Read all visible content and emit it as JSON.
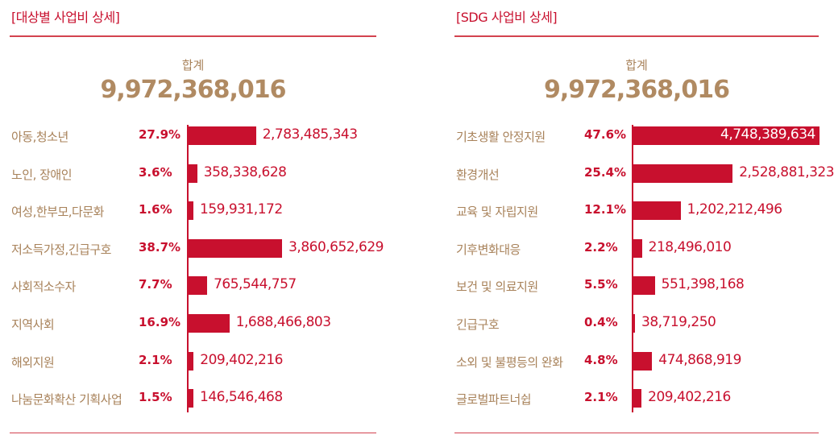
{
  "chart_data": [
    {
      "type": "bar",
      "title": "[대상별 사업비 상세]",
      "total_label": "합계",
      "total": "9,972,368,016",
      "categories": [
        "아동,청소년",
        "노인, 장애인",
        "여성,한부모,다문화",
        "저소득가정,긴급구호",
        "사회적소수자",
        "지역사회",
        "해외지원",
        "나눔문화확산 기획사업"
      ],
      "percent_labels": [
        "27.9%",
        "3.6%",
        "1.6%",
        "38.7%",
        "7.7%",
        "16.9%",
        "2.1%",
        "1.5%"
      ],
      "percents": [
        27.9,
        3.6,
        1.6,
        38.7,
        7.7,
        16.9,
        2.1,
        1.5
      ],
      "value_labels": [
        "2,783,485,343",
        "358,338,628",
        "159,931,172",
        "3,860,652,629",
        "765,544,757",
        "1,688,466,803",
        "209,402,216",
        "146,546,468"
      ]
    },
    {
      "type": "bar",
      "title": "[SDG 사업비 상세]",
      "total_label": "합계",
      "total": "9,972,368,016",
      "categories": [
        "기초생활 안정지원",
        "환경개선",
        "교육 및 자립지원",
        "기후변화대응",
        "보건 및 의료지원",
        "긴급구호",
        "소외 및 불평등의 완화",
        "글로벌파트너쉽"
      ],
      "percent_labels": [
        "47.6%",
        "25.4%",
        "12.1%",
        "2.2%",
        "5.5%",
        "0.4%",
        "4.8%",
        "2.1%"
      ],
      "percents": [
        47.6,
        25.4,
        12.1,
        2.2,
        5.5,
        0.4,
        4.8,
        2.1
      ],
      "value_labels": [
        "4,748,389,634",
        "2,528,881,323",
        "1,202,212,496",
        "218,496,010",
        "551,398,168",
        "38,719,250",
        "474,868,919",
        "209,402,216"
      ]
    }
  ]
}
